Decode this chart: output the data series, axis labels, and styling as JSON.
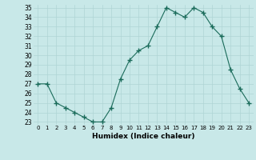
{
  "x": [
    0,
    1,
    2,
    3,
    4,
    5,
    6,
    7,
    8,
    9,
    10,
    11,
    12,
    13,
    14,
    15,
    16,
    17,
    18,
    19,
    20,
    21,
    22,
    23
  ],
  "y": [
    27,
    27,
    25,
    24.5,
    24,
    23.5,
    23,
    23,
    24.5,
    27.5,
    29.5,
    30.5,
    31,
    33,
    35,
    34.5,
    34,
    35,
    34.5,
    33,
    32,
    28.5,
    26.5,
    25
  ],
  "xlabel": "Humidex (Indice chaleur)",
  "ylim": [
    23,
    35
  ],
  "xlim": [
    -0.5,
    23.5
  ],
  "yticks": [
    23,
    24,
    25,
    26,
    27,
    28,
    29,
    30,
    31,
    32,
    33,
    34,
    35
  ],
  "xticks": [
    0,
    1,
    2,
    3,
    4,
    5,
    6,
    7,
    8,
    9,
    10,
    11,
    12,
    13,
    14,
    15,
    16,
    17,
    18,
    19,
    20,
    21,
    22,
    23
  ],
  "line_color": "#1a6b5a",
  "marker": "+",
  "bg_color": "#c8e8e8",
  "grid_color": "#afd4d4",
  "title": ""
}
